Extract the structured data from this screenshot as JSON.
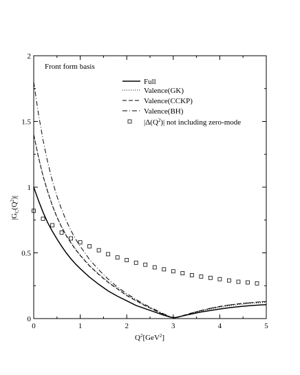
{
  "chart_data": {
    "type": "line",
    "annotation": "Front form basis",
    "xlabel": {
      "base": "Q",
      "sup": "2",
      "rest": "[GeV",
      "sup2": "2",
      "end": "]"
    },
    "ylabel": {
      "pre": "|G",
      "sub": "C",
      "mid": "(Q",
      "sup": "2",
      "end": ")|"
    },
    "xlim": [
      0,
      5
    ],
    "ylim": [
      0,
      2
    ],
    "xticks": [
      "0",
      "1",
      "2",
      "3",
      "4",
      "5"
    ],
    "yticks": [
      "0",
      "0.5",
      "1",
      "1.5",
      "2"
    ],
    "legend_placement": "top-right",
    "series": [
      {
        "name": "Full",
        "style": "solid",
        "color": "#000000",
        "x": [
          0,
          0.1,
          0.2,
          0.3,
          0.4,
          0.5,
          0.6,
          0.7,
          0.8,
          0.9,
          1.0,
          1.2,
          1.4,
          1.6,
          1.8,
          2.0,
          2.2,
          2.4,
          2.6,
          2.8,
          2.95,
          3.05,
          3.2,
          3.4,
          3.6,
          3.8,
          4.0,
          4.2,
          4.4,
          4.6,
          4.8,
          5.0
        ],
        "y": [
          1.0,
          0.9,
          0.81,
          0.73,
          0.665,
          0.605,
          0.55,
          0.5,
          0.455,
          0.415,
          0.38,
          0.315,
          0.26,
          0.21,
          0.17,
          0.135,
          0.1,
          0.075,
          0.05,
          0.025,
          0.01,
          0.008,
          0.02,
          0.035,
          0.05,
          0.062,
          0.073,
          0.082,
          0.09,
          0.097,
          0.102,
          0.106
        ]
      },
      {
        "name": "Valence(GK)",
        "style": "dotted",
        "color": "#000000",
        "x": [
          0,
          0.1,
          0.2,
          0.3,
          0.4,
          0.5,
          0.6,
          0.7,
          0.8,
          0.9,
          1.0,
          1.2,
          1.4,
          1.6,
          1.8,
          2.0,
          2.2,
          2.4,
          2.6,
          2.8,
          3.0,
          3.1,
          3.2,
          3.4,
          3.6,
          3.8,
          4.0,
          4.2,
          4.4,
          4.6,
          4.8,
          5.0
        ],
        "y": [
          1.4,
          1.235,
          1.09,
          0.97,
          0.865,
          0.775,
          0.7,
          0.635,
          0.58,
          0.53,
          0.485,
          0.405,
          0.34,
          0.28,
          0.23,
          0.18,
          0.14,
          0.1,
          0.065,
          0.03,
          0.005,
          0.008,
          0.02,
          0.04,
          0.058,
          0.073,
          0.086,
          0.097,
          0.106,
          0.113,
          0.119,
          0.123
        ]
      },
      {
        "name": "Valence(CCKP)",
        "style": "dashed",
        "color": "#000000",
        "x": [
          0,
          0.1,
          0.2,
          0.3,
          0.4,
          0.5,
          0.6,
          0.7,
          0.8,
          0.9,
          1.0,
          1.2,
          1.4,
          1.6,
          1.8,
          2.0,
          2.2,
          2.4,
          2.6,
          2.8,
          3.0,
          3.1,
          3.2,
          3.4,
          3.6,
          3.8,
          4.0,
          4.2,
          4.4,
          4.6,
          4.8,
          5.0
        ],
        "y": [
          1.4,
          1.23,
          1.085,
          0.965,
          0.86,
          0.77,
          0.695,
          0.63,
          0.575,
          0.525,
          0.48,
          0.4,
          0.335,
          0.275,
          0.225,
          0.175,
          0.135,
          0.097,
          0.063,
          0.03,
          0.005,
          0.01,
          0.022,
          0.043,
          0.062,
          0.078,
          0.092,
          0.103,
          0.112,
          0.119,
          0.125,
          0.13
        ]
      },
      {
        "name": "Valence(BH)",
        "style": "dashdot",
        "color": "#000000",
        "x": [
          0,
          0.1,
          0.2,
          0.3,
          0.4,
          0.5,
          0.6,
          0.7,
          0.8,
          0.9,
          1.0,
          1.2,
          1.4,
          1.6,
          1.8,
          2.0,
          2.2,
          2.4,
          2.6,
          2.8,
          3.0,
          3.1,
          3.2,
          3.4,
          3.6,
          3.8,
          4.0,
          4.2,
          4.4,
          4.6,
          4.8,
          5.0
        ],
        "y": [
          1.8,
          1.56,
          1.36,
          1.19,
          1.05,
          0.93,
          0.83,
          0.745,
          0.67,
          0.605,
          0.55,
          0.45,
          0.37,
          0.3,
          0.24,
          0.19,
          0.145,
          0.105,
          0.07,
          0.035,
          0.005,
          0.01,
          0.022,
          0.043,
          0.062,
          0.078,
          0.092,
          0.103,
          0.112,
          0.119,
          0.125,
          0.13
        ]
      },
      {
        "name_parts": {
          "pre": "|Δ(Q",
          "sup": "2",
          "post": ")| not including zero-mode"
        },
        "style": "open-square",
        "color": "#000000",
        "x": [
          0,
          0.2,
          0.4,
          0.6,
          0.8,
          1.0,
          1.2,
          1.4,
          1.6,
          1.8,
          2.0,
          2.2,
          2.4,
          2.6,
          2.8,
          3.0,
          3.2,
          3.4,
          3.6,
          3.8,
          4.0,
          4.2,
          4.4,
          4.6,
          4.8
        ],
        "y": [
          0.82,
          0.76,
          0.71,
          0.655,
          0.61,
          0.58,
          0.55,
          0.52,
          0.49,
          0.465,
          0.445,
          0.425,
          0.41,
          0.39,
          0.375,
          0.36,
          0.345,
          0.33,
          0.32,
          0.31,
          0.3,
          0.29,
          0.28,
          0.275,
          0.268
        ]
      }
    ]
  }
}
